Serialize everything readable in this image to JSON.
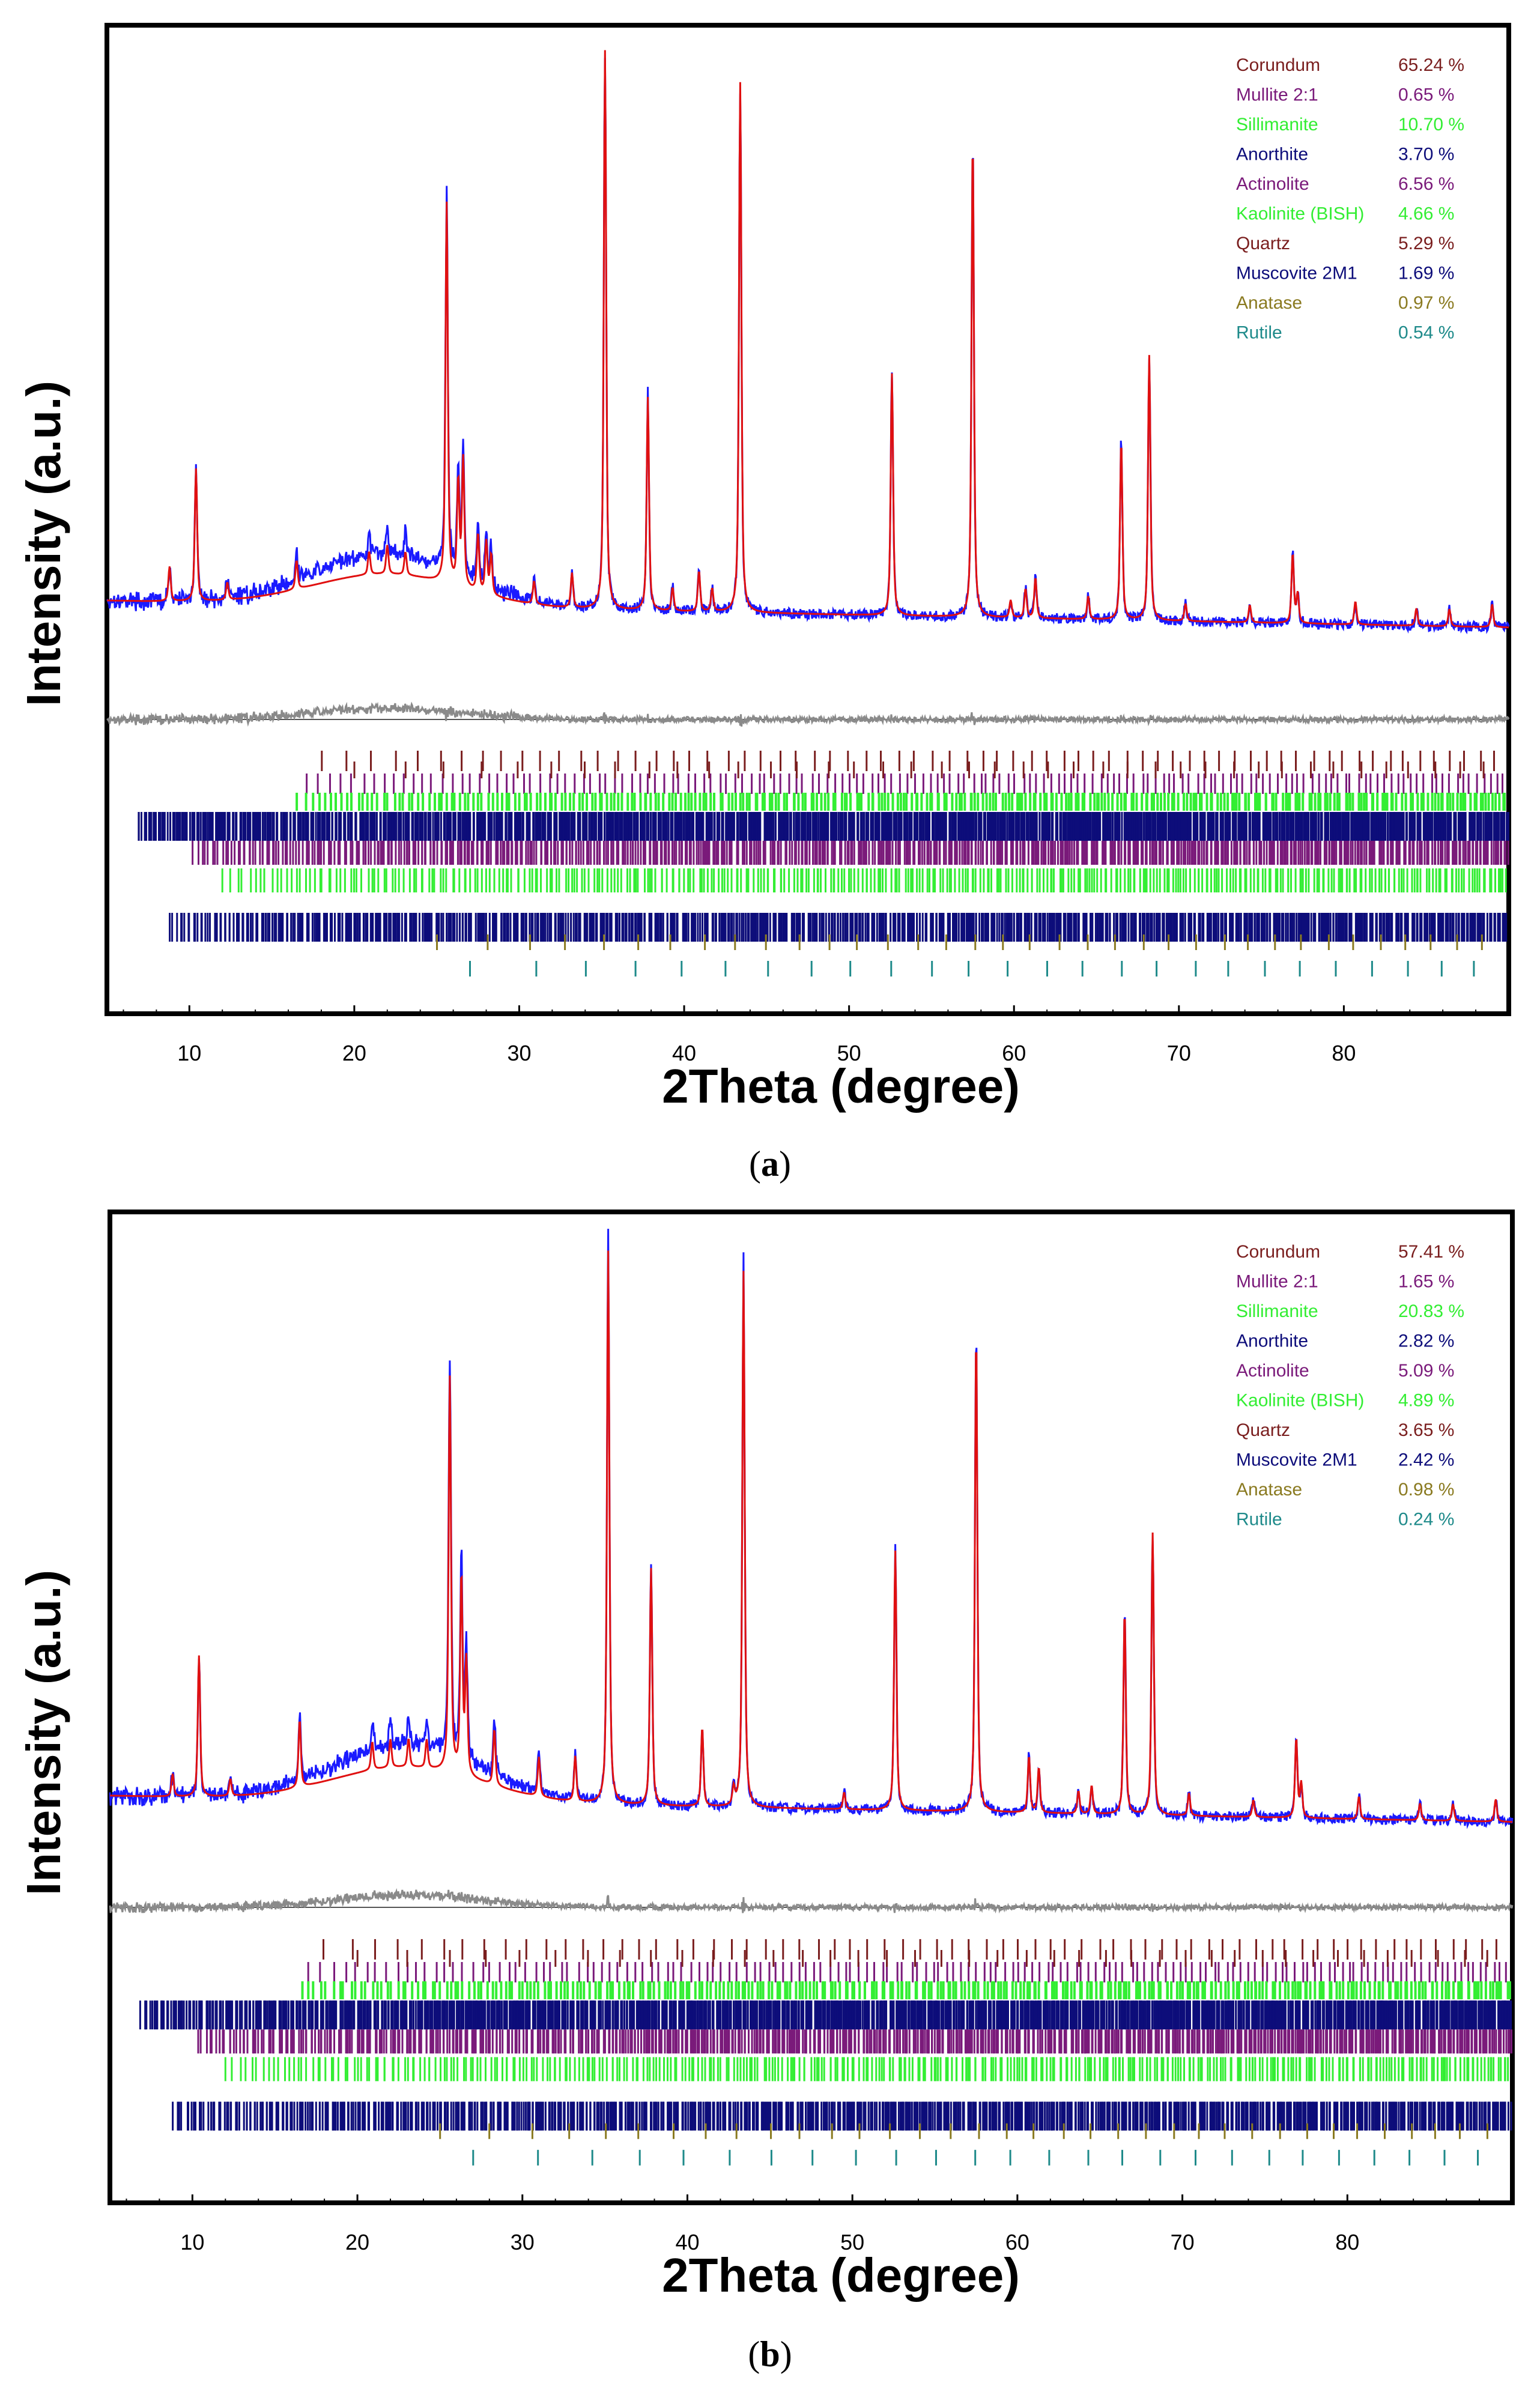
{
  "figure": {
    "caption_a": "a",
    "caption_b": "b",
    "caption_open": "(",
    "caption_close": ")"
  },
  "chart_data": [
    {
      "id": "a",
      "type": "line",
      "title": "",
      "xlabel": "2Theta (degree)",
      "ylabel": "Intensity (a.u.)",
      "xlim": [
        5,
        90
      ],
      "xticks": [
        10,
        20,
        30,
        40,
        50,
        60,
        70,
        80
      ],
      "series": [
        {
          "name": "observed",
          "color": "#1a1aff"
        },
        {
          "name": "calculated",
          "color": "#e01010"
        },
        {
          "name": "difference",
          "color": "#8a8a8a"
        }
      ],
      "peaks": [
        {
          "x": 8.8,
          "h": 0.06
        },
        {
          "x": 10.4,
          "h": 0.23
        },
        {
          "x": 12.3,
          "h": 0.03
        },
        {
          "x": 16.5,
          "h": 0.05
        },
        {
          "x": 20.9,
          "h": 0.04
        },
        {
          "x": 22.0,
          "h": 0.05
        },
        {
          "x": 23.1,
          "h": 0.04
        },
        {
          "x": 25.6,
          "h": 0.66
        },
        {
          "x": 26.3,
          "h": 0.18
        },
        {
          "x": 26.6,
          "h": 0.22
        },
        {
          "x": 27.5,
          "h": 0.1
        },
        {
          "x": 28.0,
          "h": 0.09
        },
        {
          "x": 28.3,
          "h": 0.07
        },
        {
          "x": 30.9,
          "h": 0.04
        },
        {
          "x": 33.2,
          "h": 0.06
        },
        {
          "x": 35.2,
          "h": 0.97
        },
        {
          "x": 37.8,
          "h": 0.37
        },
        {
          "x": 39.3,
          "h": 0.04
        },
        {
          "x": 40.9,
          "h": 0.07
        },
        {
          "x": 41.7,
          "h": 0.04
        },
        {
          "x": 43.4,
          "h": 0.92
        },
        {
          "x": 52.6,
          "h": 0.42
        },
        {
          "x": 57.5,
          "h": 0.83
        },
        {
          "x": 59.8,
          "h": 0.03
        },
        {
          "x": 60.7,
          "h": 0.05
        },
        {
          "x": 61.3,
          "h": 0.07
        },
        {
          "x": 64.5,
          "h": 0.04
        },
        {
          "x": 66.5,
          "h": 0.31
        },
        {
          "x": 68.2,
          "h": 0.46
        },
        {
          "x": 70.4,
          "h": 0.03
        },
        {
          "x": 74.3,
          "h": 0.03
        },
        {
          "x": 76.9,
          "h": 0.12
        },
        {
          "x": 77.2,
          "h": 0.05
        },
        {
          "x": 80.7,
          "h": 0.04
        },
        {
          "x": 84.4,
          "h": 0.03
        },
        {
          "x": 86.4,
          "h": 0.03
        },
        {
          "x": 88.99,
          "h": 0.04
        }
      ],
      "amorphous_hump": {
        "center": 22.0,
        "width": 4.5,
        "obs_height": 0.09,
        "calc_height": 0.055
      },
      "phases": [
        {
          "name": "Corundum",
          "value": "65.24 %",
          "color": "#7a1e1e"
        },
        {
          "name": "Mullite 2:1",
          "value": "0.65 %",
          "color": "#7a1a7a"
        },
        {
          "name": "Sillimanite",
          "value": "10.70 %",
          "color": "#33ee33"
        },
        {
          "name": "Anorthite",
          "value": "3.70 %",
          "color": "#0d0d7a"
        },
        {
          "name": "Actinolite",
          "value": "6.56 %",
          "color": "#7a1a7a"
        },
        {
          "name": "Kaolinite (BISH)",
          "value": "4.66 %",
          "color": "#33ee33"
        },
        {
          "name": "Quartz",
          "value": "5.29 %",
          "color": "#7a1e1e"
        },
        {
          "name": "Muscovite 2M1",
          "value": "1.69 %",
          "color": "#0d0d7a"
        },
        {
          "name": "Anatase",
          "value": "0.97 %",
          "color": "#8a7a20"
        },
        {
          "name": "Rutile",
          "value": "0.54 %",
          "color": "#1e8a8a"
        }
      ]
    },
    {
      "id": "b",
      "type": "line",
      "title": "",
      "xlabel": "2Theta (degree)",
      "ylabel": "Intensity (a.u.)",
      "xlim": [
        5,
        90
      ],
      "xticks": [
        10,
        20,
        30,
        40,
        50,
        60,
        70,
        80
      ],
      "series": [
        {
          "name": "observed",
          "color": "#1a1aff"
        },
        {
          "name": "calculated",
          "color": "#e01010"
        },
        {
          "name": "difference",
          "color": "#8a8a8a"
        }
      ],
      "peaks": [
        {
          "x": 8.8,
          "h": 0.04
        },
        {
          "x": 10.4,
          "h": 0.25
        },
        {
          "x": 12.3,
          "h": 0.03
        },
        {
          "x": 16.5,
          "h": 0.12
        },
        {
          "x": 20.9,
          "h": 0.05
        },
        {
          "x": 22.0,
          "h": 0.05
        },
        {
          "x": 23.1,
          "h": 0.05
        },
        {
          "x": 24.2,
          "h": 0.05
        },
        {
          "x": 25.6,
          "h": 0.7
        },
        {
          "x": 26.3,
          "h": 0.35
        },
        {
          "x": 26.6,
          "h": 0.2
        },
        {
          "x": 28.3,
          "h": 0.1
        },
        {
          "x": 31.0,
          "h": 0.07
        },
        {
          "x": 33.2,
          "h": 0.08
        },
        {
          "x": 35.2,
          "h": 0.98
        },
        {
          "x": 37.8,
          "h": 0.42
        },
        {
          "x": 40.9,
          "h": 0.14
        },
        {
          "x": 42.8,
          "h": 0.03
        },
        {
          "x": 43.4,
          "h": 0.95
        },
        {
          "x": 49.5,
          "h": 0.03
        },
        {
          "x": 52.6,
          "h": 0.46
        },
        {
          "x": 57.5,
          "h": 0.85
        },
        {
          "x": 60.7,
          "h": 0.1
        },
        {
          "x": 61.3,
          "h": 0.08
        },
        {
          "x": 63.7,
          "h": 0.04
        },
        {
          "x": 64.5,
          "h": 0.05
        },
        {
          "x": 66.5,
          "h": 0.36
        },
        {
          "x": 68.2,
          "h": 0.5
        },
        {
          "x": 70.4,
          "h": 0.04
        },
        {
          "x": 74.3,
          "h": 0.03
        },
        {
          "x": 76.9,
          "h": 0.14
        },
        {
          "x": 77.2,
          "h": 0.06
        },
        {
          "x": 80.7,
          "h": 0.04
        },
        {
          "x": 84.4,
          "h": 0.03
        },
        {
          "x": 86.4,
          "h": 0.03
        },
        {
          "x": 88.99,
          "h": 0.04
        }
      ],
      "amorphous_hump": {
        "center": 23.0,
        "width": 4.5,
        "obs_height": 0.1,
        "calc_height": 0.06
      },
      "phases": [
        {
          "name": "Corundum",
          "value": "57.41 %",
          "color": "#7a1e1e"
        },
        {
          "name": "Mullite 2:1",
          "value": "1.65 %",
          "color": "#7a1a7a"
        },
        {
          "name": "Sillimanite",
          "value": "20.83 %",
          "color": "#33ee33"
        },
        {
          "name": "Anorthite",
          "value": "2.82 %",
          "color": "#0d0d7a"
        },
        {
          "name": "Actinolite",
          "value": "5.09 %",
          "color": "#7a1a7a"
        },
        {
          "name": "Kaolinite (BISH)",
          "value": "4.89 %",
          "color": "#33ee33"
        },
        {
          "name": "Quartz",
          "value": "3.65 %",
          "color": "#7a1e1e"
        },
        {
          "name": "Muscovite 2M1",
          "value": "2.42 %",
          "color": "#0d0d7a"
        },
        {
          "name": "Anatase",
          "value": "0.98 %",
          "color": "#8a7a20"
        },
        {
          "name": "Rutile",
          "value": "0.24 %",
          "color": "#1e8a8a"
        }
      ]
    }
  ]
}
